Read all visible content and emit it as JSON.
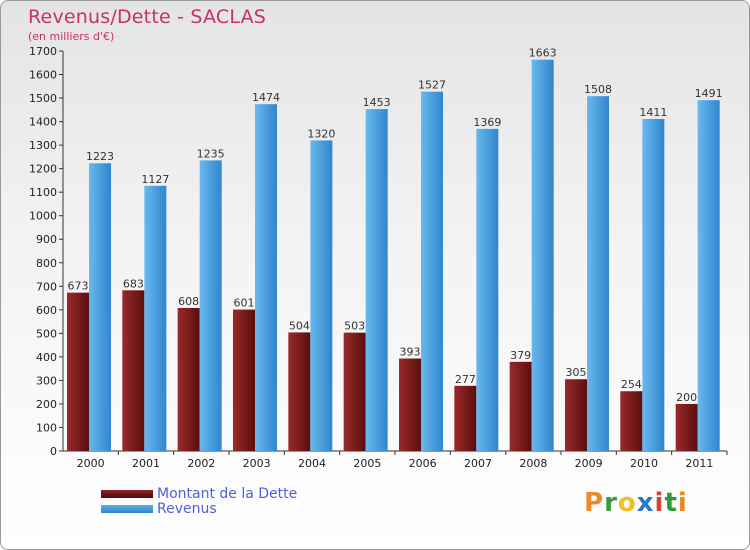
{
  "title": "Revenus/Dette - SACLAS",
  "subtitle": "(en milliers d'€)",
  "logo": {
    "text": "Proxiti",
    "letters": [
      {
        "ch": "P",
        "color": "#ef8a2a"
      },
      {
        "ch": "r",
        "color": "#3a9a3a"
      },
      {
        "ch": "o",
        "color": "#f0c020"
      },
      {
        "ch": "x",
        "color": "#2a77c4"
      },
      {
        "ch": "i",
        "color": "#d9422e"
      },
      {
        "ch": "t",
        "color": "#2f9a3c"
      },
      {
        "ch": "i",
        "color": "#e98a1d"
      }
    ]
  },
  "colors": {
    "dette": "#7a1a1a",
    "revenus": "#3b95d8",
    "axis_text": "#222222",
    "grid": "#d0d0d0"
  },
  "chart_data": {
    "type": "bar",
    "title": "Revenus/Dette - SACLAS",
    "subtitle": "(en milliers d'€)",
    "categories": [
      "2000",
      "2001",
      "2002",
      "2003",
      "2004",
      "2005",
      "2006",
      "2007",
      "2008",
      "2009",
      "2010",
      "2011"
    ],
    "series": [
      {
        "name": "Montant de la Dette",
        "values": [
          673,
          683,
          608,
          601,
          504,
          503,
          393,
          277,
          379,
          305,
          254,
          200
        ]
      },
      {
        "name": "Revenus",
        "values": [
          1223,
          1127,
          1235,
          1474,
          1320,
          1453,
          1527,
          1369,
          1663,
          1508,
          1411,
          1491
        ]
      }
    ],
    "ylim": [
      0,
      1700
    ],
    "yticks": [
      0,
      100,
      200,
      300,
      400,
      500,
      600,
      700,
      800,
      900,
      1000,
      1100,
      1200,
      1300,
      1400,
      1500,
      1600,
      1700
    ],
    "grid": false,
    "legend_position": "bottom-left"
  }
}
